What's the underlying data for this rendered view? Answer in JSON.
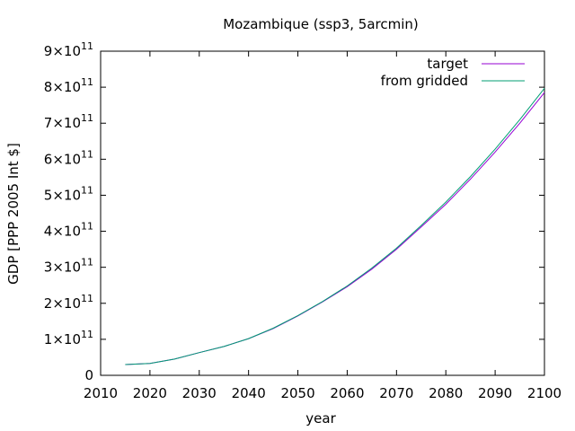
{
  "chart_data": {
    "type": "line",
    "title": "Mozambique (ssp3, 5arcmin)",
    "xlabel": "year",
    "ylabel": "GDP [PPP 2005 Int $]",
    "xlim": [
      2010,
      2100
    ],
    "ylim": [
      0,
      900000000000
    ],
    "x_ticks": [
      2010,
      2020,
      2030,
      2040,
      2050,
      2060,
      2070,
      2080,
      2090,
      2100
    ],
    "y_ticks": [
      {
        "value": 0,
        "mantissa": "0",
        "exp": ""
      },
      {
        "value": 100000000000,
        "mantissa": "1×10",
        "exp": "11"
      },
      {
        "value": 200000000000,
        "mantissa": "2×10",
        "exp": "11"
      },
      {
        "value": 300000000000,
        "mantissa": "3×10",
        "exp": "11"
      },
      {
        "value": 400000000000,
        "mantissa": "4×10",
        "exp": "11"
      },
      {
        "value": 500000000000,
        "mantissa": "5×10",
        "exp": "11"
      },
      {
        "value": 600000000000,
        "mantissa": "6×10",
        "exp": "11"
      },
      {
        "value": 700000000000,
        "mantissa": "7×10",
        "exp": "11"
      },
      {
        "value": 800000000000,
        "mantissa": "8×10",
        "exp": "11"
      },
      {
        "value": 900000000000,
        "mantissa": "9×10",
        "exp": "11"
      }
    ],
    "grid": false,
    "legend_position": "top-right",
    "series": [
      {
        "name": "target",
        "color": "#9400d3",
        "x": [
          2015,
          2020,
          2025,
          2030,
          2035,
          2040,
          2045,
          2050,
          2055,
          2060,
          2065,
          2070,
          2075,
          2080,
          2085,
          2090,
          2095,
          2100
        ],
        "y": [
          30000000000,
          33000000000,
          45000000000,
          63000000000,
          80000000000,
          102000000000,
          130000000000,
          165000000000,
          204000000000,
          246000000000,
          295000000000,
          350000000000,
          412000000000,
          475000000000,
          545000000000,
          620000000000,
          700000000000,
          785000000000
        ]
      },
      {
        "name": "from gridded",
        "color": "#009e73",
        "x": [
          2015,
          2020,
          2025,
          2030,
          2035,
          2040,
          2045,
          2050,
          2055,
          2060,
          2065,
          2070,
          2075,
          2080,
          2085,
          2090,
          2095,
          2100
        ],
        "y": [
          30000000000,
          33000000000,
          45000000000,
          63000000000,
          80000000000,
          102000000000,
          131000000000,
          166000000000,
          205000000000,
          248000000000,
          298000000000,
          353000000000,
          416000000000,
          481000000000,
          552000000000,
          628000000000,
          710000000000,
          797000000000
        ]
      }
    ]
  }
}
